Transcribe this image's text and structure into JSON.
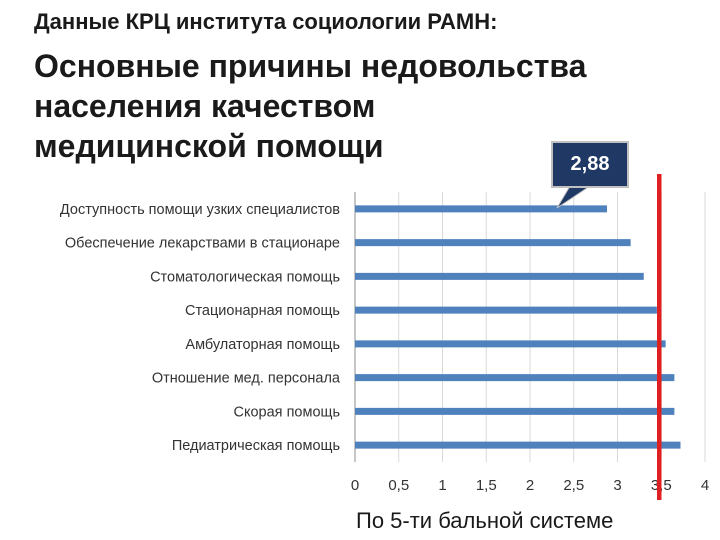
{
  "header": {
    "source": "Данные КРЦ института социологии РАМН:",
    "title_lines": [
      "Основные причины недовольства",
      "населения качеством",
      "медицинской помощи"
    ]
  },
  "callout": {
    "label": "2,88"
  },
  "chart_data": {
    "type": "bar",
    "orientation": "horizontal",
    "categories": [
      "Доступность помощи узких специалистов",
      "Обеспечение лекарствами в стационаре",
      "Стоматологическая помощь",
      "Стационарная помощь",
      "Амбулаторная помощь",
      "Отношение мед. персонала",
      "Скорая помощь",
      "Педиатрическая помощь"
    ],
    "values": [
      2.88,
      3.15,
      3.3,
      3.45,
      3.55,
      3.65,
      3.65,
      3.72
    ],
    "xlim": [
      0,
      4
    ],
    "xticks": [
      0,
      0.5,
      1,
      1.5,
      2,
      2.5,
      3,
      3.5,
      4
    ],
    "xtick_labels": [
      "0",
      "0,5",
      "1",
      "1,5",
      "2",
      "2,5",
      "3",
      "3,5",
      "4"
    ],
    "xlabel": "По 5-ти бальной системе",
    "reference_line": {
      "value": 3.5,
      "color": "#e02020"
    },
    "bar_color": "#4f81bd",
    "gridlines": true
  }
}
